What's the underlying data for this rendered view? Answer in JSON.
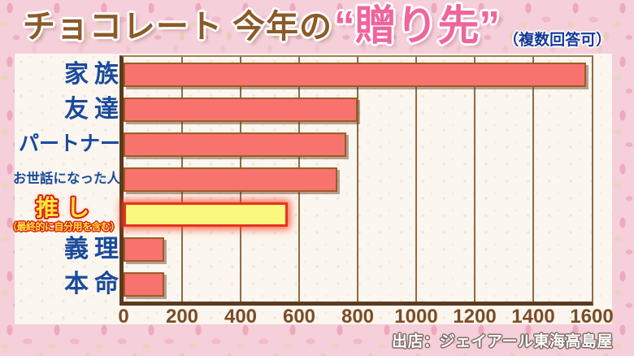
{
  "title": {
    "main": "チョコレート 今年の",
    "accent": "“贈り先”",
    "note": "（複数回答可）"
  },
  "source": "出店：ジェイアール東海高島屋",
  "colors": {
    "bar_fill": "#f8736e",
    "bar_border": "#9c5c24",
    "highlight_fill": "#fbf87e",
    "highlight_border": "#e43420",
    "grid_line": "#8f6b45",
    "axis_line": "#5c3a1e",
    "category_label": "#1a4a9c",
    "highlight_label": "#ffe43c",
    "tick_label": "#7b4b26",
    "title_brown": "#8a5a28",
    "title_pink": "#f0649c",
    "note_blue": "#16389a",
    "background_pink": "#f5cfd9",
    "panel_cream": "#fbf6ef"
  },
  "chart_data": {
    "type": "bar",
    "orientation": "horizontal",
    "title": "チョコレート 今年の“贈り先”",
    "subtitle": "（複数回答可）",
    "categories": [
      "家族",
      "友達",
      "パートナー",
      "お世話になった人",
      "推し",
      "義理",
      "本命"
    ],
    "values": [
      1580,
      800,
      760,
      730,
      560,
      140,
      140
    ],
    "highlight_index": 4,
    "highlight_sublabel": "（最終的に自分用を含む）",
    "xlim": [
      0,
      1600
    ],
    "x_ticks": [
      0,
      200,
      400,
      600,
      800,
      1000,
      1200,
      1400,
      1600
    ],
    "xlabel": "",
    "ylabel": "",
    "grid": true,
    "legend": false
  }
}
